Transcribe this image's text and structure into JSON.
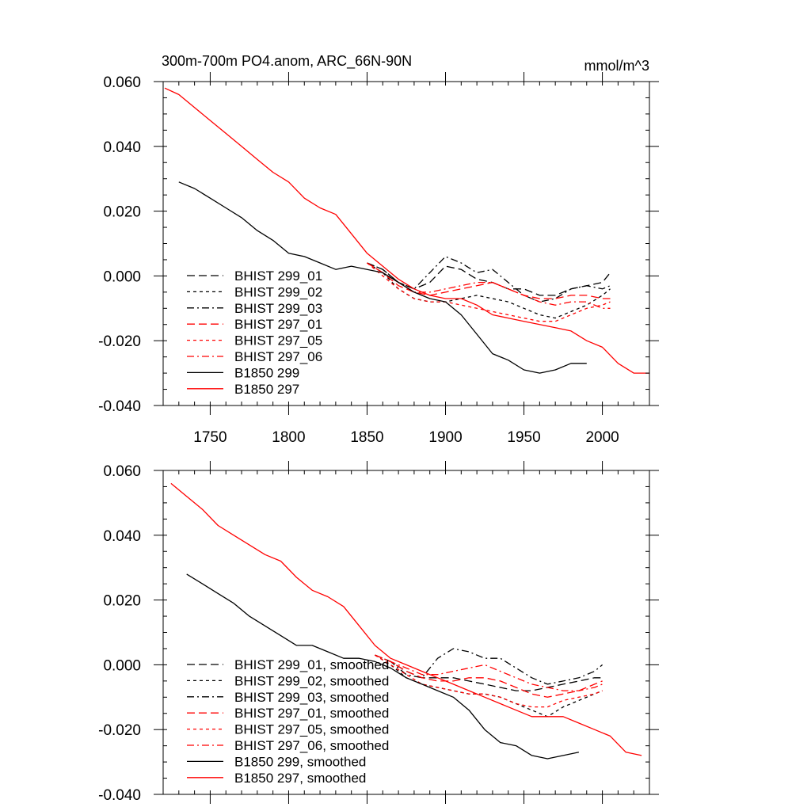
{
  "colors": {
    "black": "#000000",
    "red": "#ff0000"
  },
  "chart_data": [
    {
      "type": "line",
      "title": "300m-700m PO4.anom, ARC_66N-90N",
      "units": "mmol/m^3",
      "xlim": [
        1720,
        2030
      ],
      "ylim": [
        -0.04,
        0.06
      ],
      "x_ticks": [
        {
          "value": 1750,
          "label": "1750"
        },
        {
          "value": 1800,
          "label": "1800"
        },
        {
          "value": 1850,
          "label": "1850"
        },
        {
          "value": 1900,
          "label": "1900"
        },
        {
          "value": 1950,
          "label": "1950"
        },
        {
          "value": 2000,
          "label": "2000"
        }
      ],
      "y_ticks": [
        {
          "value": 0.06,
          "label": "0.060"
        },
        {
          "value": 0.04,
          "label": "0.040"
        },
        {
          "value": 0.02,
          "label": "0.020"
        },
        {
          "value": 0.0,
          "label": "0.000"
        },
        {
          "value": -0.02,
          "label": "-0.020"
        },
        {
          "value": -0.04,
          "label": "-0.040"
        }
      ],
      "legend_position": "lower-left",
      "series": [
        {
          "name": "BHIST 299_01",
          "color": "#000000",
          "dash": "long-dash",
          "x": [
            1850,
            1860,
            1870,
            1880,
            1890,
            1900,
            1910,
            1920,
            1930,
            1940,
            1950,
            1960,
            1970,
            1980,
            1990,
            2000,
            2005
          ],
          "y": [
            0.004,
            0.002,
            -0.002,
            -0.004,
            -0.002,
            0.003,
            0.002,
            -0.001,
            -0.002,
            -0.004,
            -0.004,
            -0.006,
            -0.006,
            -0.004,
            -0.003,
            -0.002,
            0.001
          ]
        },
        {
          "name": "BHIST 299_02",
          "color": "#000000",
          "dash": "short-dash",
          "x": [
            1850,
            1860,
            1870,
            1880,
            1890,
            1900,
            1910,
            1920,
            1930,
            1940,
            1950,
            1960,
            1970,
            1980,
            1990,
            2000,
            2005
          ],
          "y": [
            0.004,
            0.001,
            -0.004,
            -0.007,
            -0.008,
            -0.008,
            -0.007,
            -0.006,
            -0.007,
            -0.008,
            -0.01,
            -0.012,
            -0.013,
            -0.011,
            -0.009,
            -0.006,
            -0.004
          ]
        },
        {
          "name": "BHIST 299_03",
          "color": "#000000",
          "dash": "dash-dot",
          "x": [
            1850,
            1860,
            1870,
            1880,
            1890,
            1900,
            1910,
            1920,
            1930,
            1940,
            1950,
            1960,
            1970,
            1980,
            1990,
            2000,
            2005
          ],
          "y": [
            0.004,
            0.002,
            -0.002,
            -0.004,
            0.001,
            0.006,
            0.004,
            0.001,
            0.002,
            -0.002,
            -0.006,
            -0.008,
            -0.007,
            -0.004,
            -0.003,
            -0.004,
            -0.003
          ]
        },
        {
          "name": "BHIST 297_01",
          "color": "#ff0000",
          "dash": "long-dash",
          "x": [
            1850,
            1860,
            1870,
            1880,
            1890,
            1900,
            1910,
            1920,
            1930,
            1940,
            1950,
            1960,
            1970,
            1980,
            1990,
            2000,
            2005
          ],
          "y": [
            0.004,
            0.001,
            -0.003,
            -0.005,
            -0.006,
            -0.005,
            -0.004,
            -0.003,
            -0.002,
            -0.004,
            -0.006,
            -0.007,
            -0.007,
            -0.006,
            -0.006,
            -0.007,
            -0.007
          ]
        },
        {
          "name": "BHIST 297_05",
          "color": "#ff0000",
          "dash": "short-dash",
          "x": [
            1850,
            1860,
            1870,
            1880,
            1890,
            1900,
            1910,
            1920,
            1930,
            1940,
            1950,
            1960,
            1970,
            1980,
            1990,
            2000,
            2005
          ],
          "y": [
            0.004,
            0.0,
            -0.004,
            -0.007,
            -0.008,
            -0.008,
            -0.009,
            -0.01,
            -0.011,
            -0.012,
            -0.013,
            -0.014,
            -0.014,
            -0.012,
            -0.01,
            -0.009,
            -0.008
          ]
        },
        {
          "name": "BHIST 297_06",
          "color": "#ff0000",
          "dash": "dash-dot",
          "x": [
            1850,
            1860,
            1870,
            1880,
            1890,
            1900,
            1910,
            1920,
            1930,
            1940,
            1950,
            1960,
            1970,
            1980,
            1990,
            2000,
            2005
          ],
          "y": [
            0.004,
            0.001,
            -0.002,
            -0.005,
            -0.005,
            -0.004,
            -0.003,
            -0.002,
            -0.002,
            -0.004,
            -0.006,
            -0.008,
            -0.009,
            -0.008,
            -0.008,
            -0.01,
            -0.01
          ]
        },
        {
          "name": "B1850 299",
          "color": "#000000",
          "dash": "solid",
          "x": [
            1730,
            1740,
            1750,
            1760,
            1770,
            1780,
            1790,
            1800,
            1810,
            1820,
            1830,
            1840,
            1850,
            1860,
            1870,
            1880,
            1890,
            1900,
            1910,
            1920,
            1930,
            1940,
            1950,
            1960,
            1970,
            1980,
            1990
          ],
          "y": [
            0.029,
            0.027,
            0.024,
            0.021,
            0.018,
            0.014,
            0.011,
            0.007,
            0.006,
            0.004,
            0.002,
            0.003,
            0.002,
            0.001,
            -0.002,
            -0.005,
            -0.007,
            -0.008,
            -0.012,
            -0.018,
            -0.024,
            -0.026,
            -0.029,
            -0.03,
            -0.029,
            -0.027,
            -0.027
          ]
        },
        {
          "name": "B1850 297",
          "color": "#ff0000",
          "dash": "solid",
          "x": [
            1721,
            1730,
            1740,
            1750,
            1760,
            1770,
            1780,
            1790,
            1800,
            1810,
            1820,
            1830,
            1840,
            1850,
            1860,
            1870,
            1880,
            1890,
            1900,
            1910,
            1920,
            1930,
            1940,
            1950,
            1960,
            1970,
            1980,
            1990,
            2000,
            2010,
            2020,
            2030
          ],
          "y": [
            0.058,
            0.056,
            0.052,
            0.048,
            0.044,
            0.04,
            0.036,
            0.032,
            0.029,
            0.024,
            0.021,
            0.019,
            0.013,
            0.007,
            0.003,
            -0.001,
            -0.004,
            -0.006,
            -0.007,
            -0.007,
            -0.009,
            -0.012,
            -0.013,
            -0.014,
            -0.015,
            -0.016,
            -0.017,
            -0.02,
            -0.022,
            -0.027,
            -0.03,
            -0.03
          ]
        }
      ]
    },
    {
      "type": "line",
      "xlim": [
        1720,
        2030
      ],
      "ylim": [
        -0.04,
        0.06
      ],
      "x_ticks": [
        {
          "value": 1750,
          "label": ""
        },
        {
          "value": 1800,
          "label": ""
        },
        {
          "value": 1850,
          "label": ""
        },
        {
          "value": 1900,
          "label": ""
        },
        {
          "value": 1950,
          "label": ""
        },
        {
          "value": 2000,
          "label": ""
        }
      ],
      "y_ticks": [
        {
          "value": 0.06,
          "label": "0.060"
        },
        {
          "value": 0.04,
          "label": "0.040"
        },
        {
          "value": 0.02,
          "label": "0.020"
        },
        {
          "value": 0.0,
          "label": "0.000"
        },
        {
          "value": -0.02,
          "label": "-0.020"
        },
        {
          "value": -0.04,
          "label": "-0.040"
        }
      ],
      "legend_position": "lower-left",
      "series": [
        {
          "name": "BHIST 299_01, smoothed",
          "color": "#000000",
          "dash": "long-dash",
          "x": [
            1855,
            1865,
            1875,
            1885,
            1895,
            1905,
            1915,
            1925,
            1935,
            1945,
            1955,
            1965,
            1975,
            1985,
            1995,
            2000
          ],
          "y": [
            0.003,
            0.001,
            -0.002,
            -0.004,
            -0.004,
            -0.004,
            -0.005,
            -0.006,
            -0.007,
            -0.008,
            -0.008,
            -0.007,
            -0.006,
            -0.005,
            -0.004,
            -0.004
          ]
        },
        {
          "name": "BHIST 299_02, smoothed",
          "color": "#000000",
          "dash": "short-dash",
          "x": [
            1855,
            1865,
            1875,
            1885,
            1895,
            1905,
            1915,
            1925,
            1935,
            1945,
            1955,
            1965,
            1975,
            1985,
            1995,
            2000
          ],
          "y": [
            0.003,
            0.0,
            -0.004,
            -0.006,
            -0.007,
            -0.008,
            -0.009,
            -0.009,
            -0.01,
            -0.012,
            -0.014,
            -0.016,
            -0.013,
            -0.011,
            -0.009,
            -0.008
          ]
        },
        {
          "name": "BHIST 299_03, smoothed",
          "color": "#000000",
          "dash": "dash-dot",
          "x": [
            1855,
            1865,
            1875,
            1885,
            1895,
            1905,
            1915,
            1925,
            1935,
            1945,
            1955,
            1965,
            1975,
            1985,
            1995,
            2000
          ],
          "y": [
            0.003,
            0.001,
            -0.003,
            -0.004,
            0.002,
            0.005,
            0.004,
            0.002,
            0.002,
            -0.001,
            -0.004,
            -0.006,
            -0.005,
            -0.004,
            -0.002,
            0.0
          ]
        },
        {
          "name": "BHIST 297_01, smoothed",
          "color": "#ff0000",
          "dash": "long-dash",
          "x": [
            1855,
            1865,
            1875,
            1885,
            1895,
            1905,
            1915,
            1925,
            1935,
            1945,
            1955,
            1965,
            1975,
            1985,
            1995,
            2000
          ],
          "y": [
            0.003,
            0.001,
            -0.002,
            -0.004,
            -0.005,
            -0.005,
            -0.004,
            -0.004,
            -0.005,
            -0.007,
            -0.009,
            -0.01,
            -0.009,
            -0.008,
            -0.006,
            -0.005
          ]
        },
        {
          "name": "BHIST 297_05, smoothed",
          "color": "#ff0000",
          "dash": "short-dash",
          "x": [
            1855,
            1865,
            1875,
            1885,
            1895,
            1905,
            1915,
            1925,
            1935,
            1945,
            1955,
            1965,
            1975,
            1985,
            1995,
            2000
          ],
          "y": [
            0.003,
            0.0,
            -0.003,
            -0.006,
            -0.007,
            -0.008,
            -0.009,
            -0.009,
            -0.01,
            -0.012,
            -0.013,
            -0.013,
            -0.011,
            -0.01,
            -0.009,
            -0.008
          ]
        },
        {
          "name": "BHIST 297_06, smoothed",
          "color": "#ff0000",
          "dash": "dash-dot",
          "x": [
            1855,
            1865,
            1875,
            1885,
            1895,
            1905,
            1915,
            1925,
            1935,
            1945,
            1955,
            1965,
            1975,
            1985,
            1995,
            2000
          ],
          "y": [
            0.003,
            0.001,
            -0.001,
            -0.003,
            -0.003,
            -0.002,
            -0.001,
            0.0,
            -0.002,
            -0.004,
            -0.006,
            -0.007,
            -0.008,
            -0.008,
            -0.007,
            -0.006
          ]
        },
        {
          "name": "B1850 299, smoothed",
          "color": "#000000",
          "dash": "solid",
          "x": [
            1735,
            1745,
            1755,
            1765,
            1775,
            1785,
            1795,
            1805,
            1815,
            1825,
            1835,
            1845,
            1855,
            1865,
            1875,
            1885,
            1895,
            1905,
            1915,
            1925,
            1935,
            1945,
            1955,
            1965,
            1975,
            1985
          ],
          "y": [
            0.028,
            0.025,
            0.022,
            0.019,
            0.015,
            0.012,
            0.009,
            0.006,
            0.006,
            0.004,
            0.002,
            0.002,
            0.001,
            -0.001,
            -0.004,
            -0.006,
            -0.008,
            -0.01,
            -0.014,
            -0.02,
            -0.024,
            -0.025,
            -0.028,
            -0.029,
            -0.028,
            -0.027
          ]
        },
        {
          "name": "B1850 297, smoothed",
          "color": "#ff0000",
          "dash": "solid",
          "x": [
            1725,
            1735,
            1745,
            1755,
            1765,
            1775,
            1785,
            1795,
            1805,
            1815,
            1825,
            1835,
            1845,
            1855,
            1865,
            1875,
            1885,
            1895,
            1905,
            1915,
            1925,
            1935,
            1945,
            1955,
            1965,
            1975,
            1985,
            1995,
            2005,
            2015,
            2025
          ],
          "y": [
            0.056,
            0.052,
            0.048,
            0.043,
            0.04,
            0.037,
            0.034,
            0.032,
            0.027,
            0.023,
            0.021,
            0.018,
            0.012,
            0.006,
            0.002,
            0.0,
            -0.002,
            -0.004,
            -0.006,
            -0.008,
            -0.01,
            -0.012,
            -0.014,
            -0.016,
            -0.016,
            -0.016,
            -0.018,
            -0.02,
            -0.022,
            -0.027,
            -0.028
          ]
        }
      ]
    }
  ]
}
